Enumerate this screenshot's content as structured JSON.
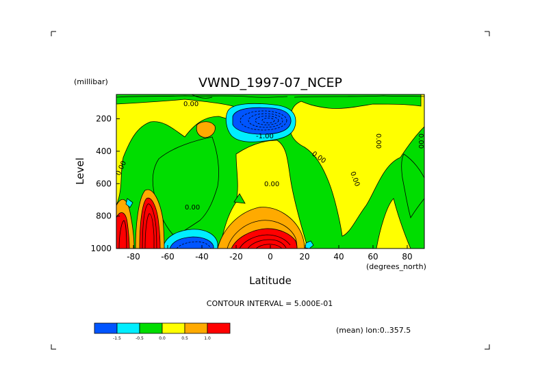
{
  "chart_data": {
    "type": "contour",
    "title": "VWND_1997-07_NCEP",
    "xlabel": "Latitude",
    "x_units": "(degrees_north)",
    "ylabel": "Level",
    "y_units": "(millibar)",
    "xlim": [
      -90,
      90
    ],
    "ylim": [
      1000,
      50
    ],
    "x_ticks": [
      "-80",
      "-60",
      "-40",
      "-20",
      "0",
      "20",
      "40",
      "60",
      "80"
    ],
    "y_ticks": [
      "200",
      "400",
      "600",
      "800",
      "1000"
    ],
    "contour_interval_label": "CONTOUR INTERVAL = 5.000E-01",
    "contour_labels": [
      "0.00",
      "-1.00"
    ],
    "footnote": "(mean) lon:0..357.5",
    "colorbar": {
      "labels": [
        "-1.5",
        "-0.5",
        "0.0",
        "0.5",
        "1.0"
      ],
      "colors": [
        "#0055ff",
        "#00eeff",
        "#00dd00",
        "#ffff00",
        "#ffaa00",
        "#ff0000"
      ]
    }
  }
}
